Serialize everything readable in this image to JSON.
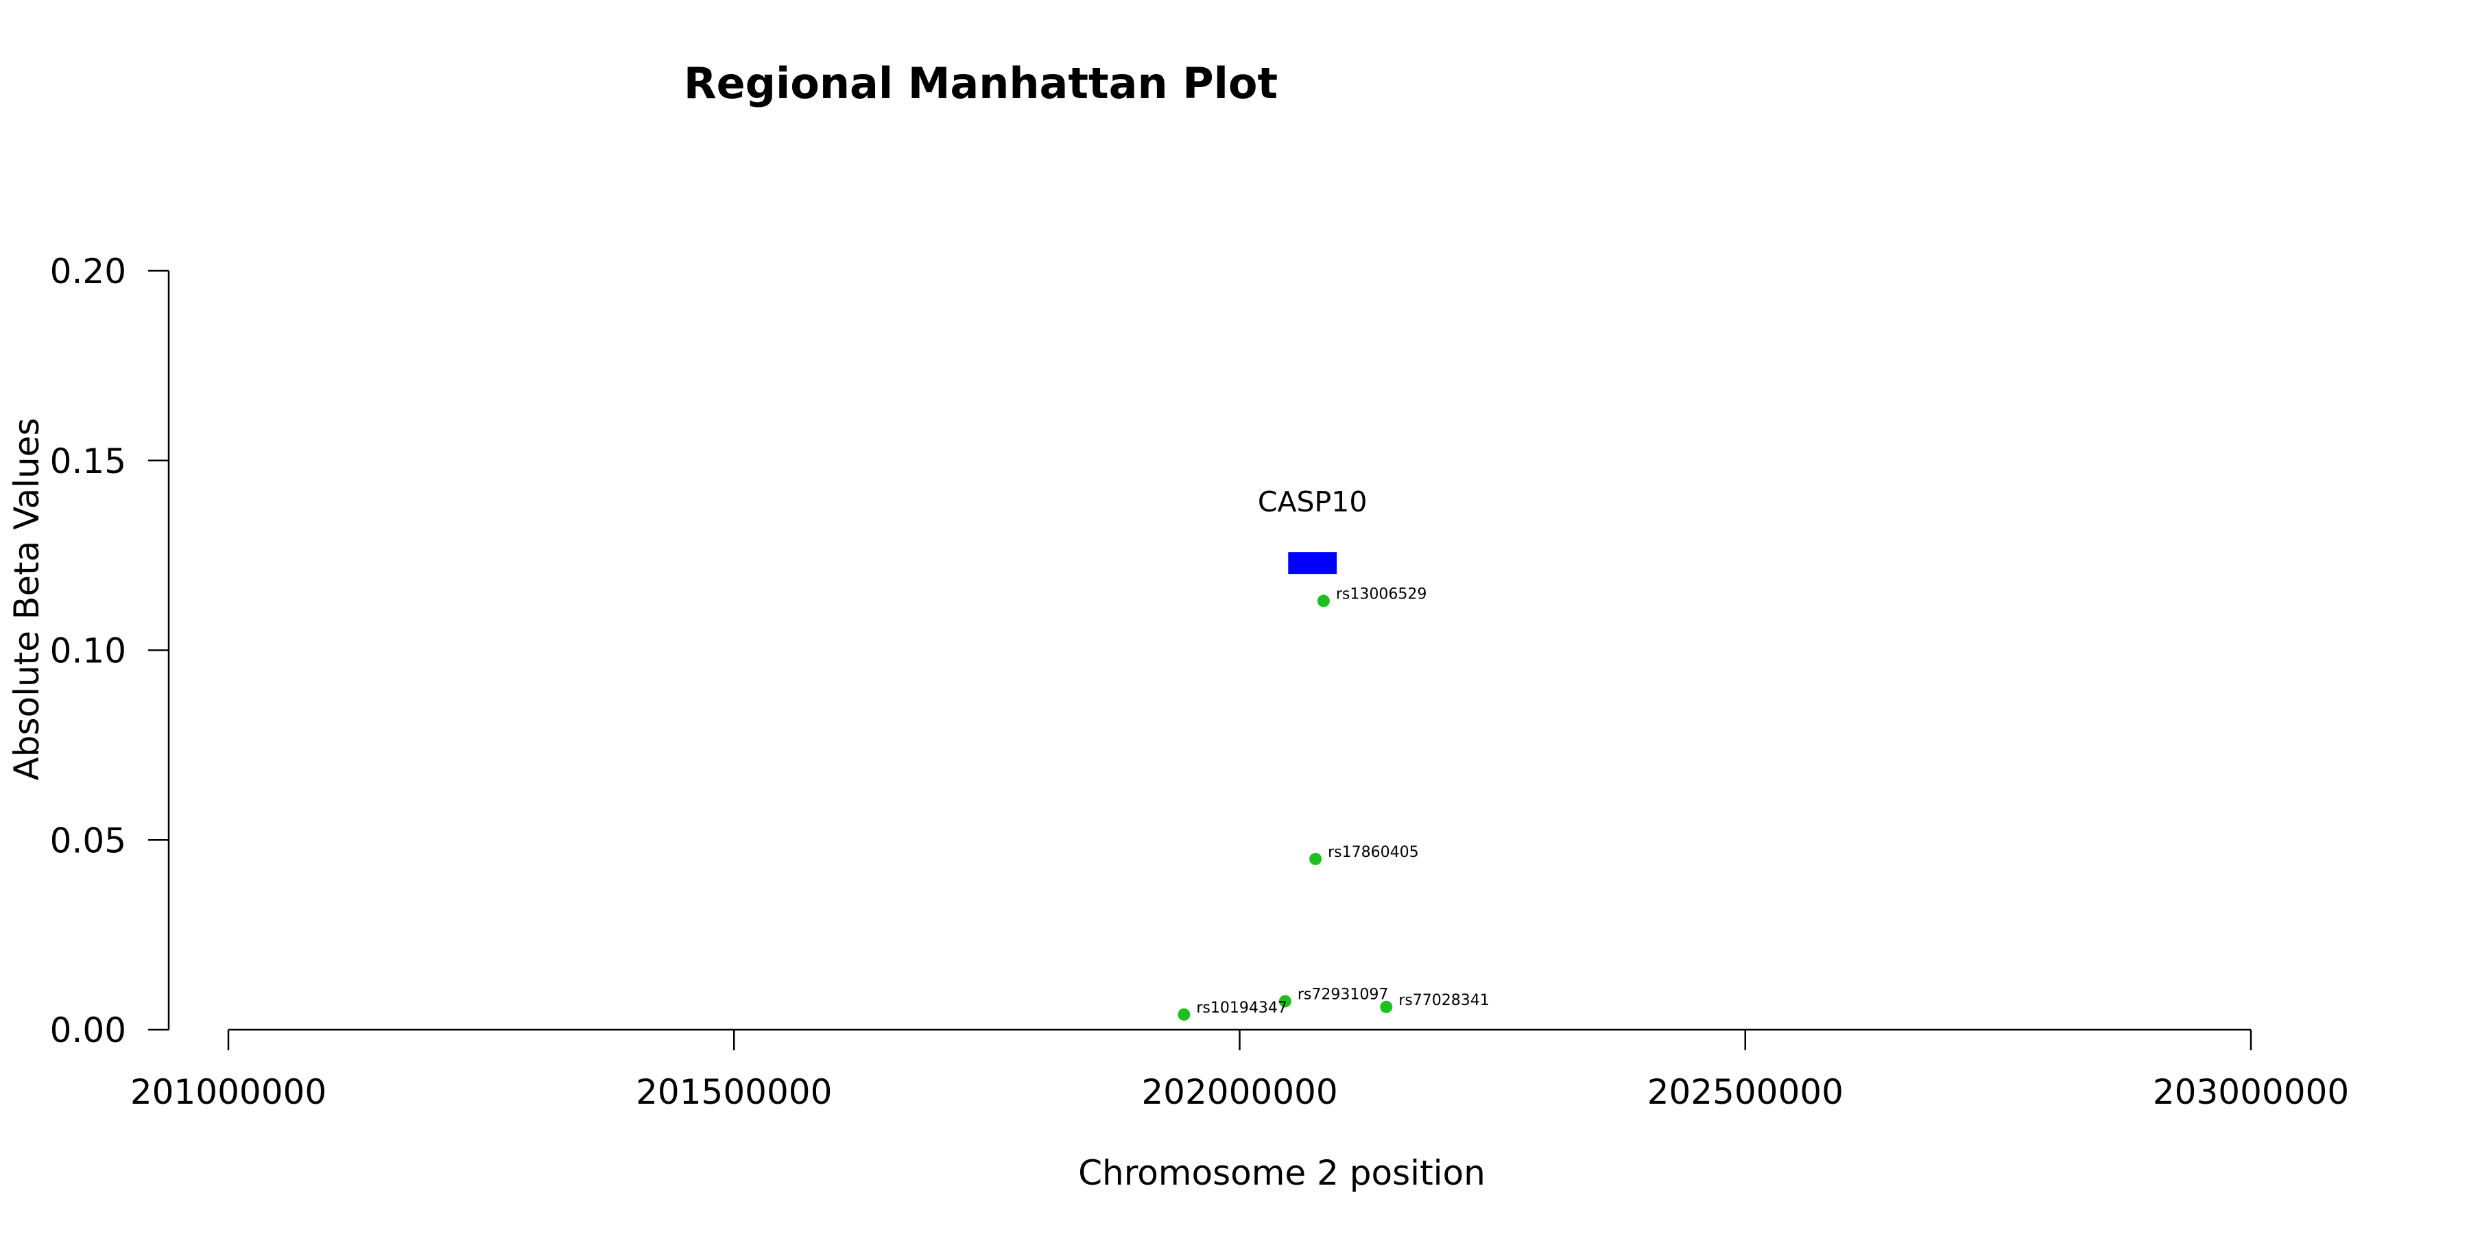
{
  "chart_data": {
    "type": "scatter",
    "title": "Regional Manhattan Plot",
    "xlabel": "Chromosome 2 position",
    "ylabel": "Absolute Beta Values",
    "xlim": [
      201000000,
      203000000
    ],
    "ylim": [
      0,
      0.2
    ],
    "x_ticks": [
      201000000,
      201500000,
      202000000,
      202500000,
      203000000
    ],
    "x_tick_labels": [
      "201000000",
      "201500000",
      "202000000",
      "202500000",
      "203000000"
    ],
    "y_ticks": [
      0,
      0.05,
      0.1,
      0.15,
      0.2
    ],
    "y_tick_labels": [
      "0.00",
      "0.05",
      "0.10",
      "0.15",
      "0.20"
    ],
    "grid": false,
    "point_color": "#1fbf1f",
    "points": [
      {
        "label": "rs13006529",
        "x": 202083000,
        "y": 0.113
      },
      {
        "label": "rs17860405",
        "x": 202075000,
        "y": 0.045
      },
      {
        "label": "rs72931097",
        "x": 202045000,
        "y": 0.0075
      },
      {
        "label": "rs77028341",
        "x": 202145000,
        "y": 0.006
      },
      {
        "label": "rs10194347",
        "x": 201945000,
        "y": 0.004
      }
    ],
    "genes": [
      {
        "name": "CASP10",
        "start": 202048000,
        "end": 202096000,
        "y": 0.123,
        "color": "#0000ff"
      }
    ]
  }
}
